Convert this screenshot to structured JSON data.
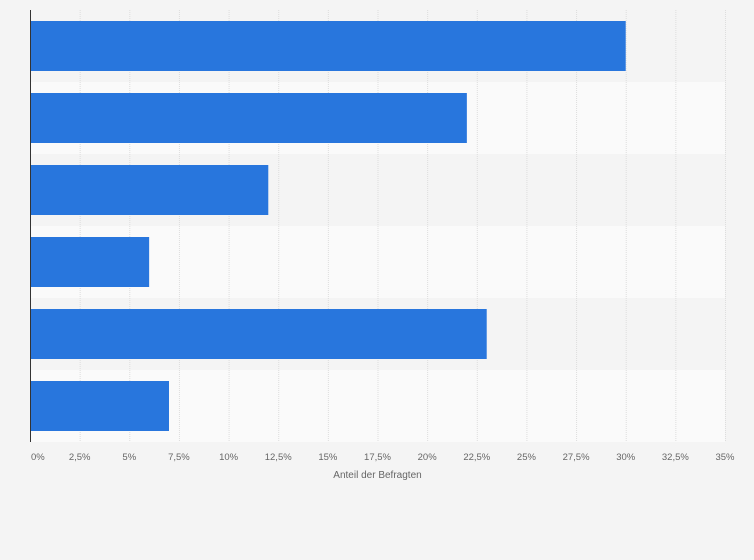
{
  "chart_data": {
    "type": "bar",
    "orientation": "horizontal",
    "categories": [
      "",
      "",
      "",
      "",
      "",
      ""
    ],
    "values": [
      30,
      22,
      12,
      6,
      23,
      7
    ],
    "xlabel": "Anteil der Befragten",
    "ylabel": "",
    "xlim": [
      0,
      35
    ],
    "ticks": [
      0,
      2.5,
      5,
      7.5,
      10,
      12.5,
      15,
      17.5,
      20,
      22.5,
      25,
      27.5,
      30,
      32.5,
      35
    ],
    "tick_labels": [
      "0%",
      "2,5%",
      "5%",
      "7,5%",
      "10%",
      "12,5%",
      "15%",
      "17,5%",
      "20%",
      "22,5%",
      "25%",
      "27,5%",
      "30%",
      "32,5%",
      "35%"
    ],
    "grid": true,
    "legend": "none",
    "bar_color": "#2876dd",
    "band_colors": [
      "#f4f4f4",
      "#fafafa"
    ],
    "gridline_color": "#dddddd",
    "axis_color": "#333333"
  }
}
